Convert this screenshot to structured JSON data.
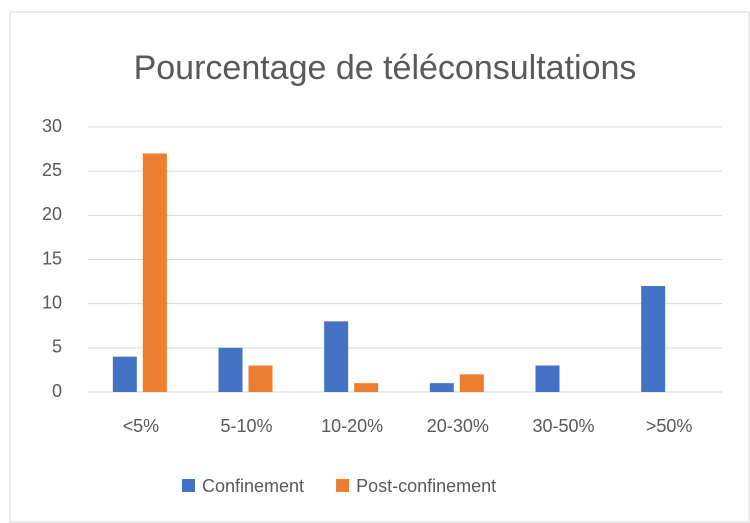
{
  "chart_data": {
    "type": "bar",
    "title": "Pourcentage de téléconsultations",
    "categories": [
      "<5%",
      "5-10%",
      "10-20%",
      "20-30%",
      "30-50%",
      ">50%"
    ],
    "series": [
      {
        "name": "Confinement",
        "color": "#4472c4",
        "values": [
          4,
          5,
          8,
          1,
          3,
          12
        ]
      },
      {
        "name": "Post-confinement",
        "color": "#ed7d31",
        "values": [
          27,
          3,
          1,
          2,
          0,
          0
        ]
      }
    ],
    "ylim": [
      0,
      30
    ],
    "yticks": [
      0,
      5,
      10,
      15,
      20,
      25,
      30
    ],
    "grid": true,
    "legend": "bottom"
  }
}
